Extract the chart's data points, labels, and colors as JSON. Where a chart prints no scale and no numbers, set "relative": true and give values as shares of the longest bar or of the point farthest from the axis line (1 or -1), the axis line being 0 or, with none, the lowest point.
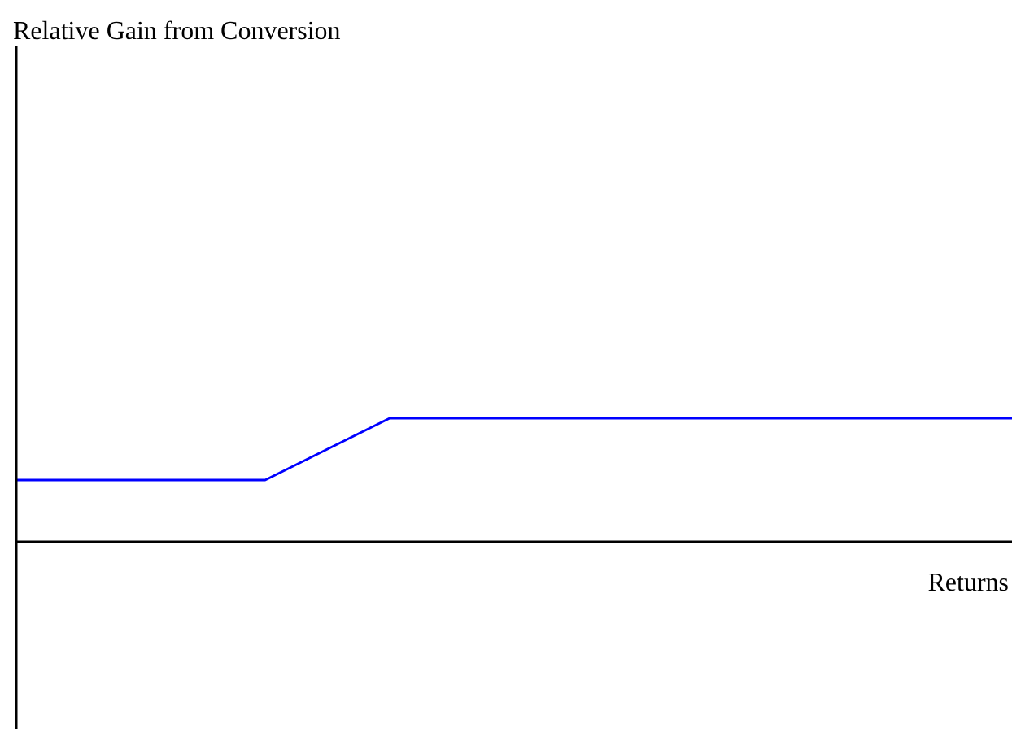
{
  "chart_data": {
    "type": "line",
    "relative": true,
    "annotations": [
      "Relative Gain from Conversion"
    ],
    "xlabel": "Returns",
    "categories": [
      null,
      null,
      null,
      null,
      null,
      null,
      null,
      null,
      null
    ],
    "series": [
      {
        "color": "#0000ff",
        "values": [
          0.5,
          0.5,
          0.5,
          1,
          1,
          1,
          1,
          1,
          1
        ]
      }
    ],
    "marker": "none",
    "line_style": "solid",
    "legend": false
  }
}
